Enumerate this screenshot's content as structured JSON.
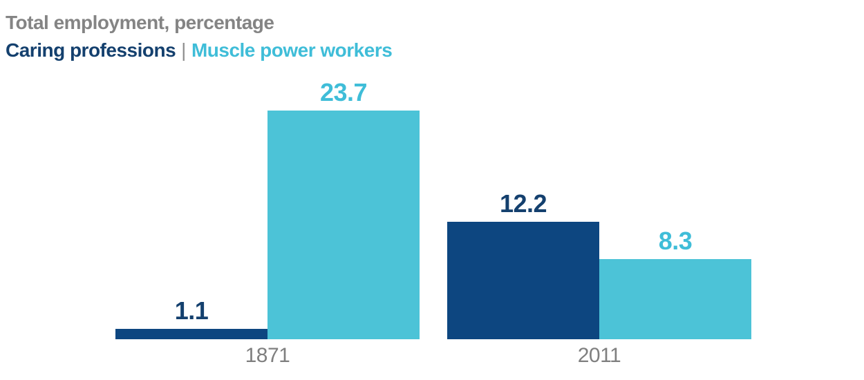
{
  "header": {
    "title": "Total employment, percentage",
    "legend": {
      "series1_label": "Caring professions",
      "separator": "|",
      "series2_label": "Muscle power workers"
    }
  },
  "colors": {
    "background": "#ffffff",
    "title_gray": "#848484",
    "axis_label_gray": "#7f7f7f",
    "separator_gray": "#8f8f8f",
    "navy_bar": "#0d4680",
    "navy_text": "#14406e",
    "cyan_bar": "#4cc3d7",
    "cyan_text": "#3fbdd8"
  },
  "chart_data": {
    "type": "bar",
    "title": "Total employment, percentage",
    "categories": [
      "1871",
      "2011"
    ],
    "series": [
      {
        "name": "Caring professions",
        "values": [
          1.1,
          12.2
        ],
        "labels": [
          "1.1",
          "12.2"
        ],
        "color": "#0d4680",
        "label_color": "#14406e"
      },
      {
        "name": "Muscle power workers",
        "values": [
          23.7,
          8.3
        ],
        "labels": [
          "23.7",
          "8.3"
        ],
        "color": "#4cc3d7",
        "label_color": "#3fbdd8"
      }
    ],
    "xlabel": "",
    "ylabel": "Total employment, percentage",
    "ylim": [
      0,
      25
    ],
    "grid": false,
    "axis_lines": false,
    "legend_position": "top-left",
    "value_labels_shown": true
  }
}
